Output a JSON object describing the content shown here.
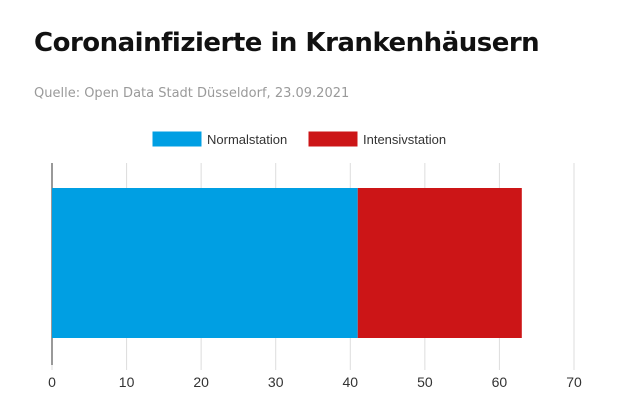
{
  "header": {
    "title": "Coronainfizierte in Krankenhäusern",
    "source": "Quelle: Open Data Stadt Düsseldorf, 23.09.2021"
  },
  "colors": {
    "normal": "#009fe3",
    "intensiv": "#cc1517",
    "grid": "#dddddd",
    "axis": "#333333"
  },
  "chart_data": {
    "type": "bar",
    "orientation": "horizontal",
    "stacked": true,
    "categories": [
      ""
    ],
    "series": [
      {
        "name": "Normalstation",
        "values": [
          41
        ]
      },
      {
        "name": "Intensivstation",
        "values": [
          22
        ]
      }
    ],
    "xlim": [
      0,
      70
    ],
    "xticks": [
      "0",
      "10",
      "20",
      "30",
      "40",
      "50",
      "60",
      "70"
    ],
    "grid": true,
    "legend": "top-center"
  }
}
